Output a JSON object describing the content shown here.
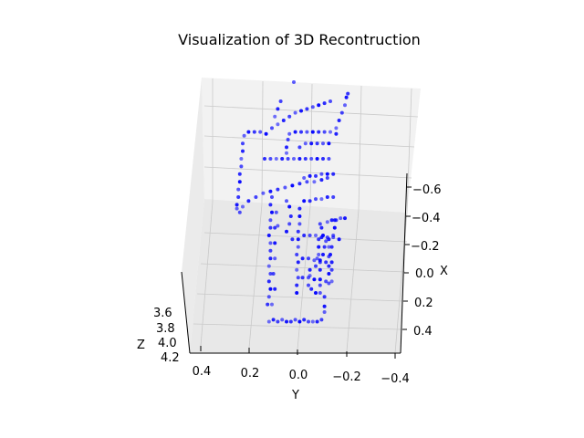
{
  "chart_data": {
    "type": "scatter",
    "projection": "3d",
    "title": "Visualization of 3D Recontruction",
    "xlabel": "X",
    "ylabel": "Y",
    "zlabel": "Z",
    "x_ticks": [
      "−0.6",
      "−0.4",
      "−0.2",
      "0.0",
      "0.2",
      "0.4"
    ],
    "y_ticks": [
      "0.4",
      "0.2",
      "0.0",
      "−0.2",
      "−0.4"
    ],
    "z_ticks": [
      "3.6",
      "3.8",
      "4.0",
      "4.2"
    ],
    "grid": true,
    "marker_color": "#0000ff",
    "series": [
      {
        "name": "",
        "points": [
          {
            "x": -0.55,
            "y": 0.22
          },
          {
            "x": -0.54,
            "y": 0.19
          },
          {
            "x": -0.55,
            "y": 0.16
          },
          {
            "x": -0.54,
            "y": 0.13
          },
          {
            "x": -0.55,
            "y": 0.1
          },
          {
            "x": -0.55,
            "y": 0.07
          },
          {
            "x": -0.54,
            "y": 0.04
          },
          {
            "x": -0.55,
            "y": 0.01
          },
          {
            "x": -0.54,
            "y": -0.02
          },
          {
            "x": -0.55,
            "y": -0.05
          },
          {
            "x": -0.55,
            "y": -0.08
          },
          {
            "x": -0.55,
            "y": -0.11
          },
          {
            "x": -0.54,
            "y": -0.14
          },
          {
            "x": -0.5,
            "y": -0.16
          },
          {
            "x": -0.47,
            "y": -0.16
          },
          {
            "x": -0.42,
            "y": -0.16
          },
          {
            "x": -0.4,
            "y": -0.13
          },
          {
            "x": -0.4,
            "y": -0.1
          },
          {
            "x": -0.38,
            "y": -0.07
          },
          {
            "x": -0.36,
            "y": -0.05
          },
          {
            "x": -0.31,
            "y": -0.06
          },
          {
            "x": -0.28,
            "y": -0.06
          },
          {
            "x": -0.26,
            "y": -0.1
          },
          {
            "x": -0.22,
            "y": -0.11
          },
          {
            "x": -0.2,
            "y": -0.15
          },
          {
            "x": -0.16,
            "y": -0.16
          },
          {
            "x": -0.13,
            "y": -0.17
          },
          {
            "x": -0.1,
            "y": -0.15
          },
          {
            "x": -0.06,
            "y": -0.14
          },
          {
            "x": -0.04,
            "y": -0.13
          },
          {
            "x": -0.03,
            "y": -0.18
          },
          {
            "x": -0.02,
            "y": -0.21
          },
          {
            "x": -0.02,
            "y": -0.24
          },
          {
            "x": -0.01,
            "y": -0.27
          },
          {
            "x": -0.01,
            "y": -0.3
          },
          {
            "x": -0.46,
            "y": 0.23
          },
          {
            "x": -0.42,
            "y": 0.22
          },
          {
            "x": -0.38,
            "y": 0.21
          },
          {
            "x": -0.34,
            "y": 0.22
          },
          {
            "x": -0.3,
            "y": 0.21
          },
          {
            "x": -0.26,
            "y": 0.22
          },
          {
            "x": -0.22,
            "y": 0.21
          },
          {
            "x": -0.18,
            "y": 0.21
          },
          {
            "x": -0.14,
            "y": 0.21
          },
          {
            "x": -0.1,
            "y": 0.22
          },
          {
            "x": -0.06,
            "y": 0.21
          },
          {
            "x": -0.02,
            "y": 0.21
          },
          {
            "x": 0.02,
            "y": 0.2
          },
          {
            "x": 0.06,
            "y": 0.21
          },
          {
            "x": 0.1,
            "y": 0.2
          },
          {
            "x": -0.46,
            "y": 0.2
          },
          {
            "x": -0.38,
            "y": 0.18
          },
          {
            "x": -0.3,
            "y": 0.19
          },
          {
            "x": -0.22,
            "y": 0.18
          },
          {
            "x": -0.14,
            "y": 0.18
          },
          {
            "x": -0.06,
            "y": 0.18
          },
          {
            "x": 0.02,
            "y": 0.17
          },
          {
            "x": -0.4,
            "y": 0.03
          },
          {
            "x": -0.36,
            "y": 0.03
          },
          {
            "x": -0.32,
            "y": 0.02
          },
          {
            "x": -0.28,
            "y": 0.03
          },
          {
            "x": -0.24,
            "y": 0.02
          },
          {
            "x": -0.2,
            "y": 0.03
          },
          {
            "x": -0.16,
            "y": 0.02
          },
          {
            "x": -0.12,
            "y": 0.02
          },
          {
            "x": -0.08,
            "y": 0.02
          },
          {
            "x": -0.04,
            "y": 0.01
          },
          {
            "x": 0.0,
            "y": 0.01
          },
          {
            "x": 0.04,
            "y": 0.01
          },
          {
            "x": -0.36,
            "y": -0.13
          },
          {
            "x": -0.33,
            "y": -0.13
          },
          {
            "x": -0.28,
            "y": -0.13
          },
          {
            "x": -0.24,
            "y": -0.13
          },
          {
            "x": -0.2,
            "y": -0.12
          },
          {
            "x": -0.16,
            "y": -0.12
          },
          {
            "x": -0.12,
            "y": -0.12
          },
          {
            "x": -0.35,
            "y": -0.19
          },
          {
            "x": -0.3,
            "y": -0.19
          },
          {
            "x": -0.26,
            "y": -0.19
          },
          {
            "x": -0.21,
            "y": -0.19
          },
          {
            "x": -0.16,
            "y": -0.19
          },
          {
            "x": -0.12,
            "y": -0.19
          },
          {
            "x": -0.28,
            "y": -0.21
          },
          {
            "x": -0.24,
            "y": -0.21
          },
          {
            "x": -0.2,
            "y": -0.2
          },
          {
            "x": -0.16,
            "y": -0.21
          },
          {
            "x": -0.1,
            "y": -0.22
          },
          {
            "x": -0.06,
            "y": -0.23
          },
          {
            "x": -0.02,
            "y": -0.23
          },
          {
            "x": 0.02,
            "y": 0.42
          },
          {
            "x": 0.05,
            "y": 0.4
          },
          {
            "x": 0.08,
            "y": 0.36
          },
          {
            "x": 0.1,
            "y": 0.31
          },
          {
            "x": 0.12,
            "y": 0.26
          },
          {
            "x": 0.13,
            "y": 0.21
          },
          {
            "x": 0.14,
            "y": 0.16
          },
          {
            "x": 0.15,
            "y": 0.11
          },
          {
            "x": 0.16,
            "y": 0.06
          },
          {
            "x": 0.17,
            "y": 0.01
          },
          {
            "x": 0.18,
            "y": -0.04
          },
          {
            "x": 0.18,
            "y": -0.09
          },
          {
            "x": 0.19,
            "y": -0.14
          },
          {
            "x": 0.2,
            "y": -0.18
          },
          {
            "x": 0.04,
            "y": 0.44
          },
          {
            "x": 0.06,
            "y": 0.44
          },
          {
            "x": 0.1,
            "y": 0.43
          },
          {
            "x": 0.14,
            "y": 0.43
          },
          {
            "x": 0.18,
            "y": 0.42
          },
          {
            "x": 0.22,
            "y": 0.42
          },
          {
            "x": 0.26,
            "y": 0.41
          },
          {
            "x": 0.3,
            "y": 0.41
          },
          {
            "x": 0.34,
            "y": 0.4
          },
          {
            "x": 0.38,
            "y": 0.4
          },
          {
            "x": 0.42,
            "y": 0.39
          },
          {
            "x": 0.44,
            "y": 0.36
          },
          {
            "x": 0.44,
            "y": 0.32
          },
          {
            "x": 0.44,
            "y": 0.28
          },
          {
            "x": 0.43,
            "y": 0.24
          },
          {
            "x": 0.3,
            "y": 0.25
          },
          {
            "x": 0.3,
            "y": 0.21
          },
          {
            "x": 0.3,
            "y": 0.17
          },
          {
            "x": 0.3,
            "y": 0.13
          },
          {
            "x": 0.3,
            "y": 0.09
          },
          {
            "x": 0.3,
            "y": 0.05
          },
          {
            "x": 0.3,
            "y": 0.01
          },
          {
            "x": 0.3,
            "y": -0.03
          },
          {
            "x": 0.3,
            "y": -0.07
          },
          {
            "x": 0.3,
            "y": -0.11
          },
          {
            "x": 0.3,
            "y": -0.15
          },
          {
            "x": 0.3,
            "y": -0.19
          },
          {
            "x": 0.33,
            "y": 0.1
          },
          {
            "x": 0.36,
            "y": 0.1
          },
          {
            "x": 0.4,
            "y": 0.09
          },
          {
            "x": 0.43,
            "y": 0.08
          },
          {
            "x": 0.44,
            "y": 0.04
          },
          {
            "x": 0.44,
            "y": 0.0
          },
          {
            "x": 0.44,
            "y": -0.04
          },
          {
            "x": 0.44,
            "y": -0.08
          },
          {
            "x": 0.44,
            "y": -0.12
          },
          {
            "x": 0.44,
            "y": -0.16
          },
          {
            "x": 0.44,
            "y": -0.2
          },
          {
            "x": 0.43,
            "y": -0.24
          },
          {
            "x": 0.36,
            "y": 0.01
          },
          {
            "x": 0.38,
            "y": -0.03
          },
          {
            "x": 0.38,
            "y": -0.07
          },
          {
            "x": 0.38,
            "y": -0.11
          },
          {
            "x": 0.38,
            "y": -0.15
          },
          {
            "x": 0.38,
            "y": -0.19
          },
          {
            "x": -0.1,
            "y": -0.02
          },
          {
            "x": -0.1,
            "y": -0.06
          },
          {
            "x": -0.1,
            "y": -0.1
          },
          {
            "x": -0.11,
            "y": -0.14
          },
          {
            "x": -0.11,
            "y": -0.18
          },
          {
            "x": -0.11,
            "y": -0.22
          },
          {
            "x": -0.12,
            "y": -0.26
          },
          {
            "x": -0.32,
            "y": -0.01
          },
          {
            "x": -0.32,
            "y": -0.05
          },
          {
            "x": -0.33,
            "y": -0.09
          },
          {
            "x": -0.33,
            "y": -0.13
          },
          {
            "x": -0.34,
            "y": -0.17
          },
          {
            "x": -0.34,
            "y": -0.21
          },
          {
            "x": -0.22,
            "y": -0.01
          },
          {
            "x": -0.22,
            "y": -0.05
          },
          {
            "x": -0.23,
            "y": -0.09
          },
          {
            "x": -0.23,
            "y": -0.13
          },
          {
            "x": -0.24,
            "y": -0.17
          },
          {
            "x": -0.24,
            "y": -0.21
          },
          {
            "x": 0.08,
            "y": -0.02
          },
          {
            "x": 0.08,
            "y": -0.06
          },
          {
            "x": 0.09,
            "y": -0.1
          },
          {
            "x": 0.09,
            "y": -0.14
          },
          {
            "x": 0.1,
            "y": -0.18
          },
          {
            "x": 0.1,
            "y": -0.22
          },
          {
            "x": 0.2,
            "y": -0.02
          },
          {
            "x": 0.21,
            "y": -0.06
          },
          {
            "x": 0.21,
            "y": -0.1
          },
          {
            "x": 0.22,
            "y": -0.14
          },
          {
            "x": 0.22,
            "y": -0.18
          },
          {
            "x": 0.22,
            "y": -0.22
          },
          {
            "x": 0.46,
            "y": 0.2
          },
          {
            "x": 0.48,
            "y": 0.16
          },
          {
            "x": 0.5,
            "y": 0.12
          },
          {
            "x": 0.52,
            "y": 0.08
          },
          {
            "x": 0.54,
            "y": 0.04
          },
          {
            "x": 0.55,
            "y": 0.0
          },
          {
            "x": 0.56,
            "y": -0.04
          },
          {
            "x": 0.57,
            "y": -0.08
          },
          {
            "x": 0.58,
            "y": -0.12
          },
          {
            "x": 0.59,
            "y": -0.16
          },
          {
            "x": 0.6,
            "y": -0.2
          },
          {
            "x": 0.46,
            "y": -0.24
          },
          {
            "x": 0.5,
            "y": -0.26
          },
          {
            "x": 0.54,
            "y": -0.28
          },
          {
            "x": 0.58,
            "y": -0.3
          },
          {
            "x": 0.62,
            "y": -0.31
          },
          {
            "x": 0.64,
            "y": -0.32
          },
          {
            "x": 0.08,
            "y": 0.1
          },
          {
            "x": 0.05,
            "y": 0.08
          },
          {
            "x": 0.0,
            "y": 0.07
          },
          {
            "x": -0.04,
            "y": 0.08
          },
          {
            "x": 0.52,
            "y": 0.18
          },
          {
            "x": 0.56,
            "y": 0.16
          },
          {
            "x": 0.6,
            "y": 0.14
          },
          {
            "x": -0.05,
            "y": 0.16
          },
          {
            "x": -0.08,
            "y": 0.1
          },
          {
            "x": -0.12,
            "y": 0.06
          },
          {
            "x": 0.7,
            "y": 0.05
          }
        ]
      }
    ]
  }
}
